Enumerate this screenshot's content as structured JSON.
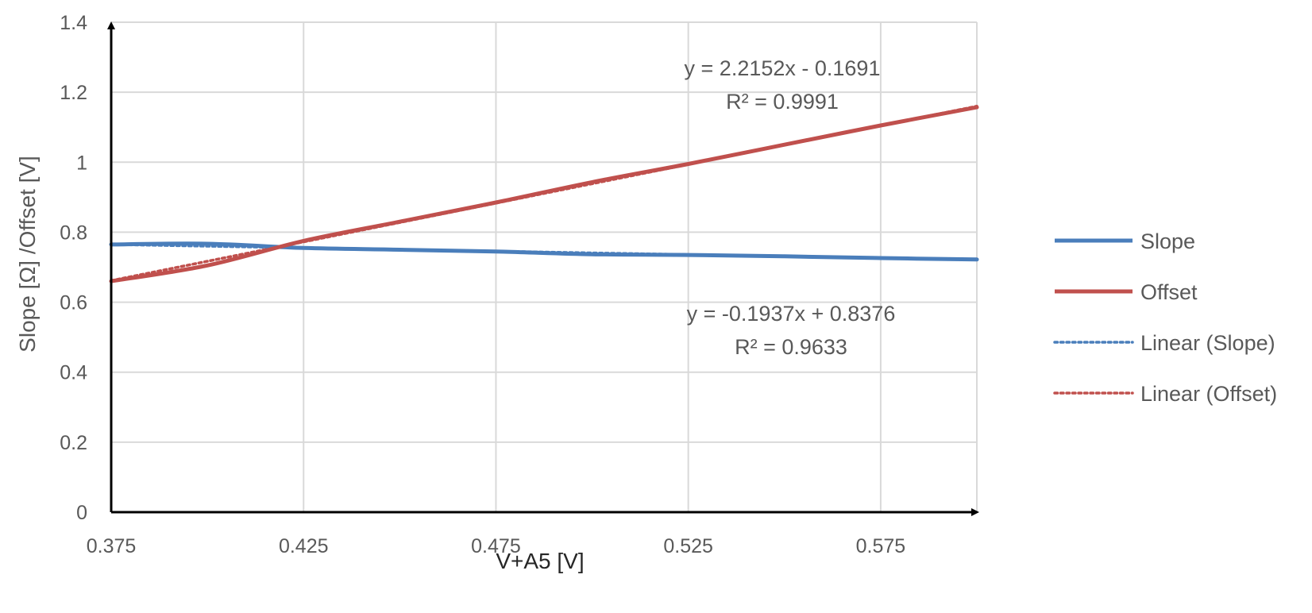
{
  "chart_data": {
    "type": "line",
    "title": "",
    "xlabel": "V+A5 [V]",
    "ylabel": "Slope [Ω] /Offset [V]",
    "xlim": [
      0.375,
      0.6
    ],
    "ylim": [
      0,
      1.4
    ],
    "x_ticks": [
      "0.375",
      "0.425",
      "0.475",
      "0.525",
      "0.575"
    ],
    "y_ticks": [
      "0",
      "0.2",
      "0.4",
      "0.6",
      "0.8",
      "1",
      "1.2",
      "1.4"
    ],
    "grid": true,
    "legend_position": "right",
    "series": [
      {
        "name": "Slope",
        "color": "#4a7ebb",
        "style": "solid",
        "x": [
          0.375,
          0.4,
          0.425,
          0.45,
          0.475,
          0.5,
          0.525,
          0.55,
          0.575,
          0.6
        ],
        "y": [
          0.765,
          0.767,
          0.755,
          0.75,
          0.745,
          0.737,
          0.735,
          0.731,
          0.726,
          0.722
        ]
      },
      {
        "name": "Offset",
        "color": "#c0504d",
        "style": "solid",
        "x": [
          0.375,
          0.4,
          0.425,
          0.45,
          0.475,
          0.5,
          0.525,
          0.55,
          0.575,
          0.6
        ],
        "y": [
          0.66,
          0.705,
          0.775,
          0.83,
          0.885,
          0.943,
          0.995,
          1.05,
          1.105,
          1.157
        ]
      }
    ],
    "trendlines": [
      {
        "name": "Linear (Slope)",
        "color": "#4a7ebb",
        "style": "dotted",
        "slope": -0.1937,
        "intercept": 0.8376,
        "equation": "y = -0.1937x + 0.8376",
        "r2": "R² = 0.9633"
      },
      {
        "name": "Linear (Offset)",
        "color": "#c0504d",
        "style": "dotted",
        "slope": 2.2152,
        "intercept": -0.1691,
        "equation": "y = 2.2152x - 0.1691",
        "r2": "R² = 0.9991"
      }
    ]
  }
}
